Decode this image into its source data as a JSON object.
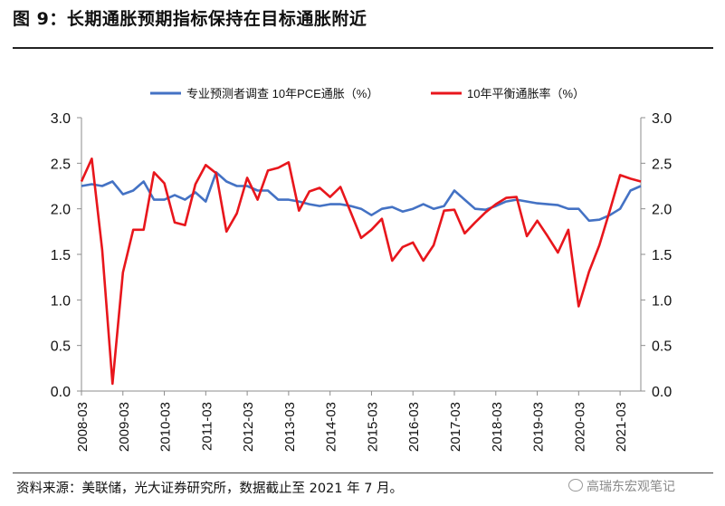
{
  "title": "图 9：长期通胀预期指标保持在目标通胀附近",
  "source": "资料来源：美联储，光大证券研究所，数据截止至 2021 年 7 月。",
  "watermark": "高瑞东宏观笔记",
  "chart_data": {
    "type": "line",
    "x_ticks": [
      "2008-03",
      "2009-03",
      "2010-03",
      "2011-03",
      "2012-03",
      "2013-03",
      "2014-03",
      "2015-03",
      "2016-03",
      "2017-03",
      "2018-03",
      "2019-03",
      "2020-03",
      "2021-03"
    ],
    "x_start": "2008-03",
    "x_step": "quarter",
    "y_left": {
      "min": 0.0,
      "max": 3.0,
      "ticks": [
        "0.0",
        "0.5",
        "1.0",
        "1.5",
        "2.0",
        "2.5",
        "3.0"
      ]
    },
    "y_right": {
      "min": 0.0,
      "max": 3.0,
      "ticks": [
        "0.0",
        "0.5",
        "1.0",
        "1.5",
        "2.0",
        "2.5",
        "3.0"
      ]
    },
    "legend_position": "top",
    "series": [
      {
        "name": "专业预测者调查 10年PCE通胀（%）",
        "color": "#4472c4",
        "axis": "left",
        "values": [
          2.25,
          2.27,
          2.25,
          2.3,
          2.16,
          2.2,
          2.3,
          2.1,
          2.1,
          2.15,
          2.1,
          2.18,
          2.08,
          2.4,
          2.3,
          2.25,
          2.25,
          2.2,
          2.2,
          2.1,
          2.1,
          2.08,
          2.05,
          2.03,
          2.05,
          2.05,
          2.03,
          2.0,
          1.93,
          2.0,
          2.02,
          1.97,
          2.0,
          2.05,
          2.0,
          2.03,
          2.2,
          2.1,
          2.0,
          1.99,
          2.03,
          2.08,
          2.1,
          2.08,
          2.06,
          2.05,
          2.04,
          2.0,
          2.0,
          1.87,
          1.88,
          1.93,
          2.0,
          2.2,
          2.25
        ]
      },
      {
        "name": "10年平衡通胀率（%）",
        "color": "#e8161c",
        "axis": "right",
        "values": [
          2.3,
          2.55,
          1.55,
          0.08,
          1.3,
          1.77,
          1.77,
          2.4,
          2.28,
          1.85,
          1.82,
          2.27,
          2.48,
          2.39,
          1.75,
          1.95,
          2.34,
          2.1,
          2.42,
          2.45,
          2.51,
          1.98,
          2.19,
          2.23,
          2.13,
          2.24,
          1.96,
          1.68,
          1.77,
          1.89,
          1.43,
          1.58,
          1.63,
          1.43,
          1.6,
          1.98,
          1.99,
          1.73,
          1.85,
          1.96,
          2.05,
          2.12,
          2.13,
          1.7,
          1.87,
          1.7,
          1.52,
          1.77,
          0.93,
          1.31,
          1.6,
          1.98,
          2.37,
          2.33,
          2.3
        ]
      }
    ]
  }
}
